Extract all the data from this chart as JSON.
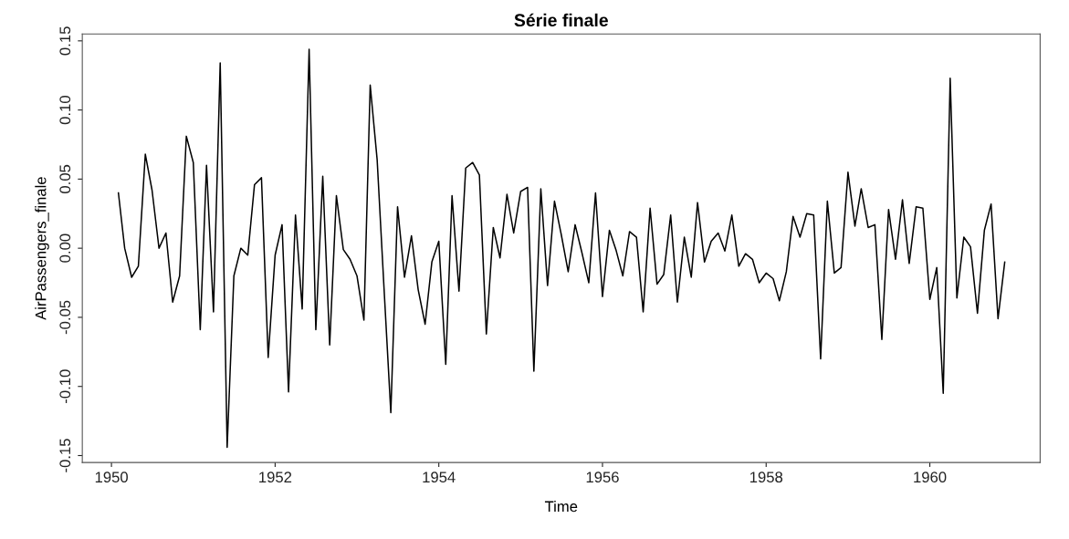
{
  "chart_data": {
    "type": "line",
    "title": "Série finale",
    "xlabel": "Time",
    "ylabel": "AirPassengers_finale",
    "x": [
      "1950-02",
      "1950-03",
      "1950-04",
      "1950-05",
      "1950-06",
      "1950-07",
      "1950-08",
      "1950-09",
      "1950-10",
      "1950-11",
      "1950-12",
      "1951-01",
      "1951-02",
      "1951-03",
      "1951-04",
      "1951-05",
      "1951-06",
      "1951-07",
      "1951-08",
      "1951-09",
      "1951-10",
      "1951-11",
      "1951-12",
      "1952-01",
      "1952-02",
      "1952-03",
      "1952-04",
      "1952-05",
      "1952-06",
      "1952-07",
      "1952-08",
      "1952-09",
      "1952-10",
      "1952-11",
      "1952-12",
      "1953-01",
      "1953-02",
      "1953-03",
      "1953-04",
      "1953-05",
      "1953-06",
      "1953-07",
      "1953-08",
      "1953-09",
      "1953-10",
      "1953-11",
      "1953-12",
      "1954-01",
      "1954-02",
      "1954-03",
      "1954-04",
      "1954-05",
      "1954-06",
      "1954-07",
      "1954-08",
      "1954-09",
      "1954-10",
      "1954-11",
      "1954-12",
      "1955-01",
      "1955-02",
      "1955-03",
      "1955-04",
      "1955-05",
      "1955-06",
      "1955-07",
      "1955-08",
      "1955-09",
      "1955-10",
      "1955-11",
      "1955-12",
      "1956-01",
      "1956-02",
      "1956-03",
      "1956-04",
      "1956-05",
      "1956-06",
      "1956-07",
      "1956-08",
      "1956-09",
      "1956-10",
      "1956-11",
      "1956-12",
      "1957-01",
      "1957-02",
      "1957-03",
      "1957-04",
      "1957-05",
      "1957-06",
      "1957-07",
      "1957-08",
      "1957-09",
      "1957-10",
      "1957-11",
      "1957-12",
      "1958-01",
      "1958-02",
      "1958-03",
      "1958-04",
      "1958-05",
      "1958-06",
      "1958-07",
      "1958-08",
      "1958-09",
      "1958-10",
      "1958-11",
      "1958-12",
      "1959-01",
      "1959-02",
      "1959-03",
      "1959-04",
      "1959-05",
      "1959-06",
      "1959-07",
      "1959-08",
      "1959-09",
      "1959-10",
      "1959-11",
      "1959-12",
      "1960-01",
      "1960-02",
      "1960-03",
      "1960-04",
      "1960-05",
      "1960-06",
      "1960-07",
      "1960-08",
      "1960-09",
      "1960-10",
      "1960-11",
      "1960-12"
    ],
    "series": [
      {
        "color": "#000000",
        "values": [
          0.04,
          0.0,
          -0.021,
          -0.013,
          0.068,
          0.042,
          0.0,
          0.011,
          -0.039,
          -0.02,
          0.081,
          0.062,
          -0.059,
          0.06,
          -0.046,
          0.134,
          -0.144,
          -0.02,
          0.0,
          -0.005,
          0.046,
          0.051,
          -0.079,
          -0.005,
          0.017,
          -0.104,
          0.024,
          -0.044,
          0.144,
          -0.059,
          0.052,
          -0.07,
          0.038,
          -0.001,
          -0.008,
          -0.02,
          -0.052,
          0.118,
          0.064,
          -0.027,
          -0.119,
          0.03,
          -0.021,
          0.009,
          -0.03,
          -0.055,
          -0.01,
          0.005,
          -0.084,
          0.038,
          -0.031,
          0.058,
          0.062,
          0.053,
          -0.062,
          0.015,
          -0.007,
          0.039,
          0.011,
          0.041,
          0.044,
          -0.089,
          0.043,
          -0.027,
          0.034,
          0.01,
          -0.017,
          0.017,
          -0.003,
          -0.025,
          0.04,
          -0.035,
          0.013,
          -0.001,
          -0.02,
          0.012,
          0.008,
          -0.046,
          0.029,
          -0.026,
          -0.019,
          0.024,
          -0.039,
          0.008,
          -0.021,
          0.033,
          -0.01,
          0.005,
          0.011,
          -0.002,
          0.024,
          -0.013,
          -0.004,
          -0.008,
          -0.025,
          -0.018,
          -0.022,
          -0.038,
          -0.017,
          0.023,
          0.008,
          0.025,
          0.024,
          -0.08,
          0.034,
          -0.018,
          -0.014,
          0.055,
          0.016,
          0.043,
          0.015,
          0.017,
          -0.066,
          0.028,
          -0.008,
          0.035,
          -0.011,
          0.03,
          0.029,
          -0.037,
          -0.014,
          -0.105,
          0.123,
          -0.036,
          0.008,
          0.001,
          -0.047,
          0.013,
          0.032,
          -0.051,
          -0.01
        ]
      }
    ],
    "xlim": [
      "1949-08-24",
      "1961-05-08"
    ],
    "xticks": [
      "1950",
      "1952",
      "1954",
      "1956",
      "1958",
      "1960"
    ],
    "ylim": [
      -0.155,
      0.155
    ],
    "yticks": [
      {
        "value": -0.15,
        "label": "-0.15"
      },
      {
        "value": -0.1,
        "label": "-0.10"
      },
      {
        "value": -0.05,
        "label": "-0.05"
      },
      {
        "value": 0,
        "label": "0.00"
      },
      {
        "value": 0.05,
        "label": "0.05"
      },
      {
        "value": 0.1,
        "label": "0.10"
      },
      {
        "value": 0.15,
        "label": "0.15"
      }
    ],
    "grid": false,
    "marker": "none",
    "line_style": "solid"
  }
}
